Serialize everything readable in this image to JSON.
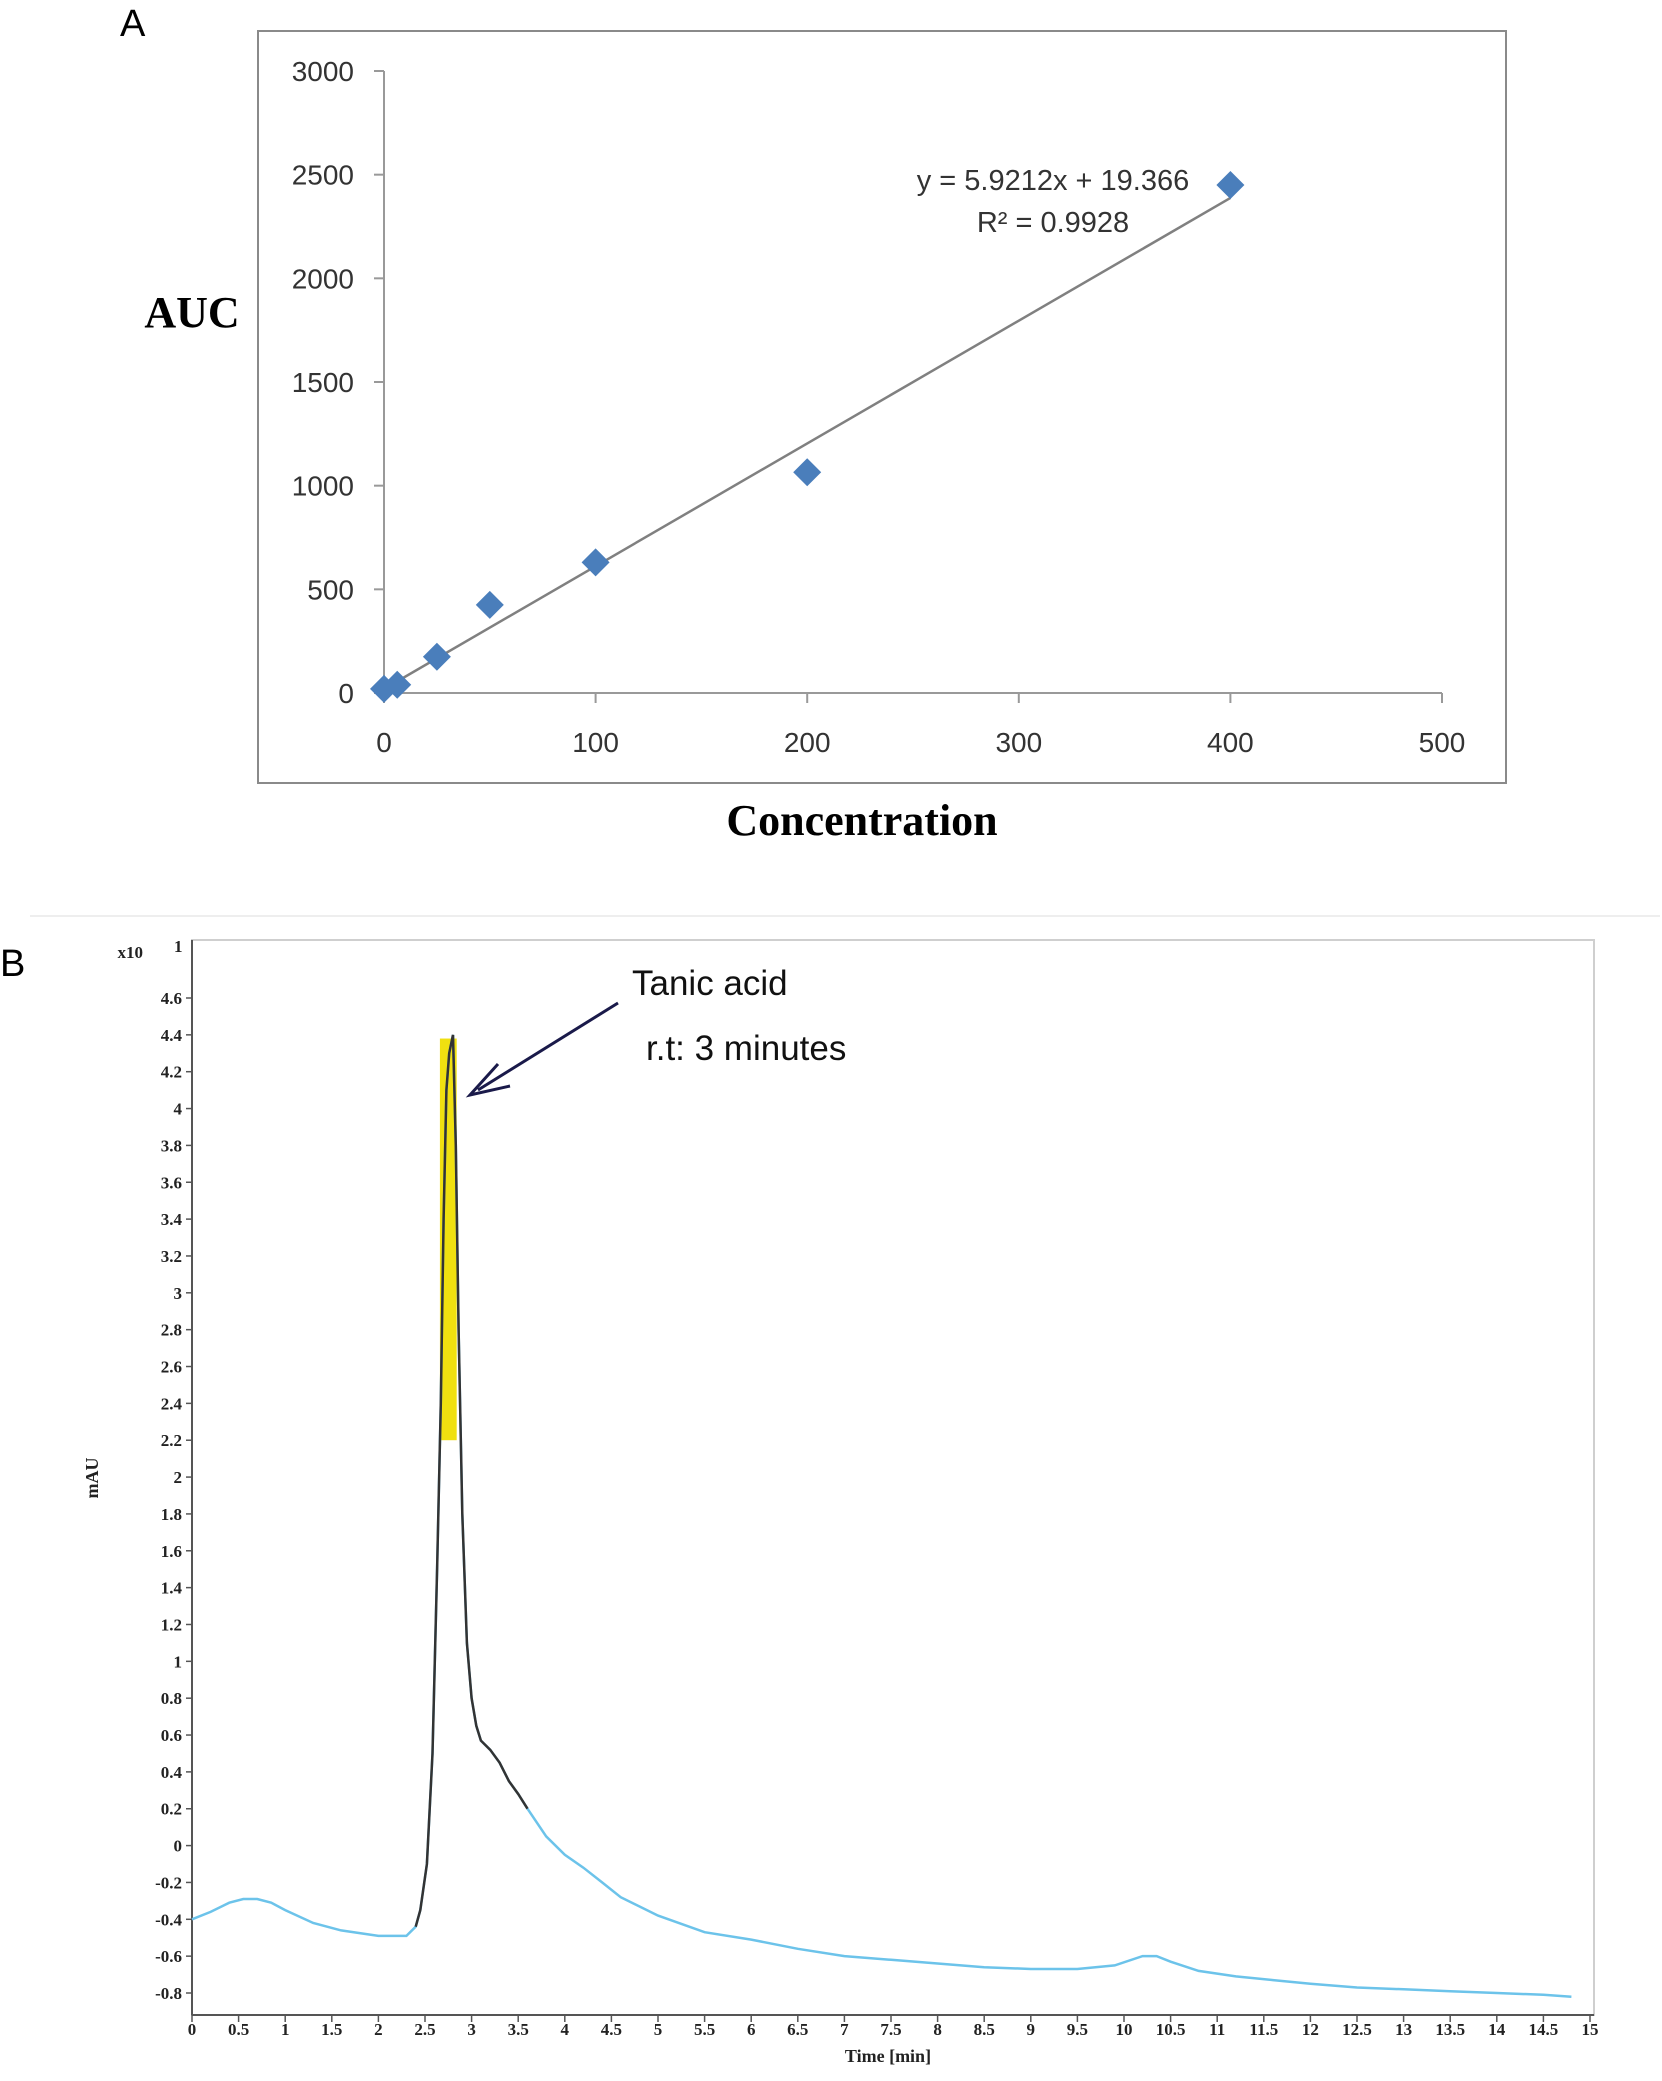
{
  "panels": {
    "a_label": "A",
    "b_label": "B"
  },
  "chart_data": [
    {
      "type": "scatter",
      "title": "",
      "xlabel": "Concentration",
      "ylabel": "AUC",
      "xlim": [
        0,
        500
      ],
      "ylim": [
        0,
        3000
      ],
      "xticks": [
        "0",
        "100",
        "200",
        "300",
        "400",
        "500"
      ],
      "yticks": [
        "0",
        "500",
        "1000",
        "1500",
        "2000",
        "2500",
        "3000"
      ],
      "grid": false,
      "legend": "none",
      "points": [
        {
          "x": 0,
          "y": 20
        },
        {
          "x": 6.25,
          "y": 40
        },
        {
          "x": 25,
          "y": 175
        },
        {
          "x": 50,
          "y": 425
        },
        {
          "x": 100,
          "y": 630
        },
        {
          "x": 200,
          "y": 1065
        },
        {
          "x": 400,
          "y": 2450
        }
      ],
      "trendline": {
        "slope": 5.9212,
        "intercept": 19.366,
        "x_range": [
          0,
          400
        ]
      },
      "equation": "y = 5.9212x + 19.366",
      "r_squared": "R² = 0.9928",
      "marker_color": "#4a7ebb",
      "trendline_color": "#808080"
    },
    {
      "type": "line",
      "title": "",
      "xlabel": "Time [min]",
      "ylabel": "mAU",
      "y_multiplier": "x10",
      "y_multiplier_exp": "1",
      "xlim": [
        0,
        15
      ],
      "ylim": [
        -0.8,
        4.6
      ],
      "xticks": [
        "0",
        "0.5",
        "1",
        "1.5",
        "2",
        "2.5",
        "3",
        "3.5",
        "4",
        "4.5",
        "5",
        "5.5",
        "6",
        "6.5",
        "7",
        "7.5",
        "8",
        "8.5",
        "9",
        "9.5",
        "10",
        "10.5",
        "11",
        "11.5",
        "12",
        "12.5",
        "13",
        "13.5",
        "14",
        "14.5",
        "15"
      ],
      "yticks": [
        "-0.8",
        "-0.6",
        "-0.4",
        "-0.2",
        "0",
        "0.2",
        "0.4",
        "0.6",
        "0.8",
        "1",
        "1.2",
        "1.4",
        "1.6",
        "1.8",
        "2",
        "2.2",
        "2.4",
        "2.6",
        "2.8",
        "3",
        "3.2",
        "3.4",
        "3.6",
        "3.8",
        "4",
        "4.2",
        "4.4",
        "4.6"
      ],
      "series": [
        {
          "x": [
            0,
            0.2,
            0.4,
            0.55,
            0.7,
            0.85,
            1.0,
            1.3,
            1.6,
            2.0,
            2.3,
            2.4,
            2.45,
            2.52,
            2.58,
            2.63,
            2.67,
            2.7,
            2.73,
            2.76,
            2.8,
            2.83,
            2.86,
            2.9,
            2.95,
            3.0,
            3.05,
            3.1,
            3.2,
            3.3,
            3.4,
            3.5,
            3.6,
            3.8,
            4.0,
            4.2,
            4.4,
            4.6,
            5.0,
            5.5,
            6.0,
            6.5,
            7.0,
            7.5,
            8.0,
            8.5,
            9.0,
            9.5,
            9.9,
            10.2,
            10.35,
            10.5,
            10.8,
            11.2,
            11.6,
            12.0,
            12.5,
            13.0,
            13.5,
            14.0,
            14.5,
            14.8
          ],
          "y": [
            -0.4,
            -0.36,
            -0.31,
            -0.29,
            -0.29,
            -0.31,
            -0.35,
            -0.42,
            -0.46,
            -0.49,
            -0.49,
            -0.44,
            -0.35,
            -0.1,
            0.5,
            1.5,
            2.4,
            3.4,
            4.1,
            4.3,
            4.4,
            3.8,
            2.8,
            1.8,
            1.1,
            0.8,
            0.65,
            0.57,
            0.52,
            0.45,
            0.35,
            0.28,
            0.2,
            0.05,
            -0.05,
            -0.12,
            -0.2,
            -0.28,
            -0.38,
            -0.47,
            -0.51,
            -0.56,
            -0.6,
            -0.62,
            -0.64,
            -0.66,
            -0.67,
            -0.67,
            -0.65,
            -0.6,
            -0.6,
            -0.63,
            -0.68,
            -0.71,
            -0.73,
            -0.75,
            -0.77,
            -0.78,
            -0.79,
            -0.8,
            -0.81,
            -0.82
          ]
        }
      ],
      "highlight": {
        "x_start": 2.66,
        "x_end": 2.84,
        "y_start": 2.2,
        "y_end": 4.38,
        "color": "#f0e010"
      },
      "line_color": "#6cc3ea",
      "peak_line_color": "#333333",
      "annotation": {
        "line1": "Tanic acid",
        "line2": "r.t: 3 minutes"
      }
    }
  ]
}
